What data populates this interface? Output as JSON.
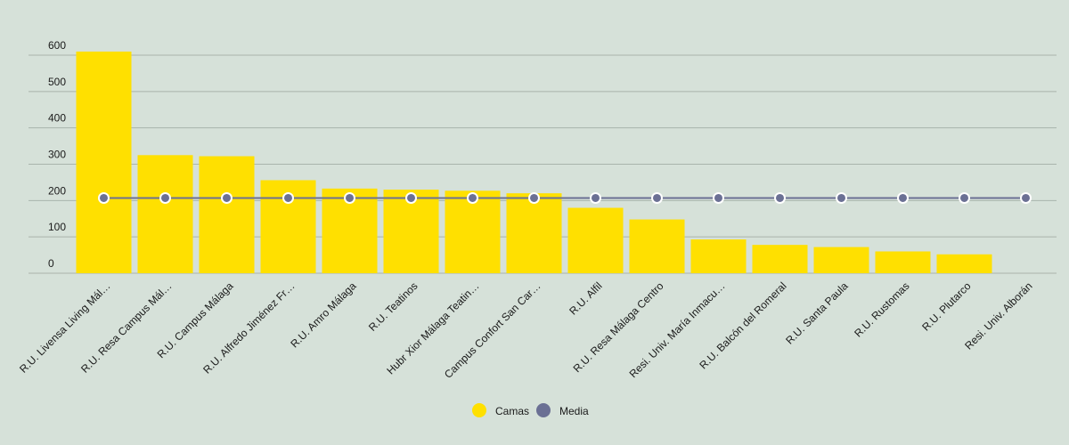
{
  "chart_data": {
    "type": "bar",
    "categories": [
      "R.U. Livensa Living Mál…",
      "R.U. Resa Campus Mál…",
      "R.U. Campus Málaga",
      "R.U. Alfredo Jiménez Fr…",
      "R.U. Amro Málaga",
      "R.U. Teatinos",
      "Hubr Xior Málaga Teatin…",
      "Campus Confort San Car…",
      "R.U. Alfil",
      "R.U. Resa Málaga Centro",
      "Resi. Univ. María Inmacu…",
      "R.U. Balcón del Romeral",
      "R.U. Santa Paula",
      "R.U. Rustomas",
      "R.U. Plutarco",
      "Resi. Univ. Alborán"
    ],
    "series": [
      {
        "name": "Camas",
        "type": "bar",
        "color": "#ffe000",
        "values": [
          610,
          325,
          322,
          256,
          233,
          230,
          227,
          220,
          180,
          148,
          93,
          78,
          72,
          60,
          52,
          0
        ]
      },
      {
        "name": "Media",
        "type": "line",
        "color": "#6b7094",
        "values": [
          207,
          207,
          207,
          207,
          207,
          207,
          207,
          207,
          207,
          207,
          207,
          207,
          207,
          207,
          207,
          207
        ]
      }
    ],
    "yticks": [
      0,
      100,
      200,
      300,
      400,
      500,
      600
    ],
    "ylim": [
      0,
      620
    ],
    "grid": true,
    "legend_position": "bottom-center"
  }
}
